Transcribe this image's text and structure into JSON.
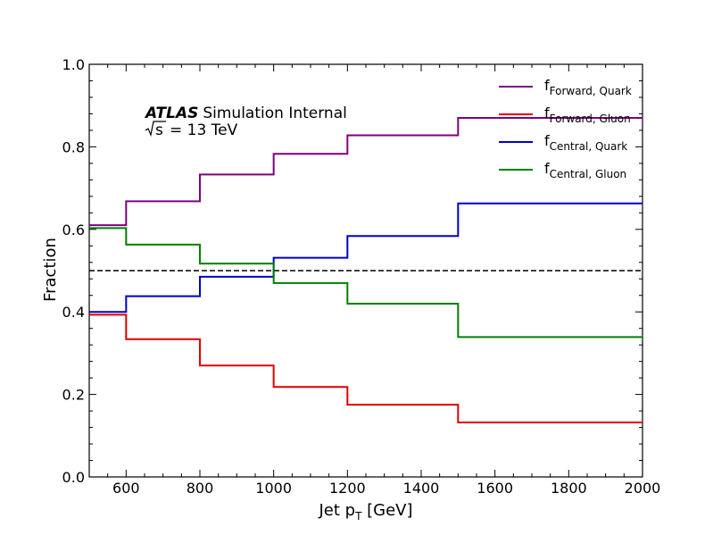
{
  "chart_data": {
    "type": "line",
    "step": true,
    "xlabel": "Jet p",
    "xlabel_sub": "T",
    "xlabel_unit": " [GeV]",
    "ylabel": "Fraction",
    "xlim": [
      500,
      2000
    ],
    "ylim": [
      0.0,
      1.0
    ],
    "xticks": [
      600,
      800,
      1000,
      1200,
      1400,
      1600,
      1800,
      2000
    ],
    "yticks": [
      "0.0",
      "0.2",
      "0.4",
      "0.6",
      "0.8",
      "1.0"
    ],
    "bin_edges": [
      500,
      600,
      800,
      1000,
      1200,
      1500,
      2000
    ],
    "reference_line": {
      "y": 0.5,
      "style": "dashed",
      "color": "#000000"
    },
    "annotation": {
      "experiment": "ATLAS",
      "status": "Simulation Internal",
      "energy_prefix": "s",
      "energy_value": "= 13 TeV"
    },
    "legend_position": "top-right",
    "series": [
      {
        "name": "f",
        "name_sub": "Forward, Quark",
        "color": "#800080",
        "values": [
          0.61,
          0.668,
          0.733,
          0.783,
          0.828,
          0.87
        ]
      },
      {
        "name": "f",
        "name_sub": "Forward, Gluon",
        "color": "#e00000",
        "values": [
          0.393,
          0.334,
          0.27,
          0.218,
          0.175,
          0.132
        ]
      },
      {
        "name": "f",
        "name_sub": "Central, Quark",
        "color": "#0000c8",
        "values": [
          0.4,
          0.438,
          0.485,
          0.531,
          0.584,
          0.663
        ]
      },
      {
        "name": "f",
        "name_sub": "Central, Gluon",
        "color": "#008000",
        "values": [
          0.603,
          0.563,
          0.517,
          0.47,
          0.42,
          0.339
        ]
      }
    ]
  }
}
